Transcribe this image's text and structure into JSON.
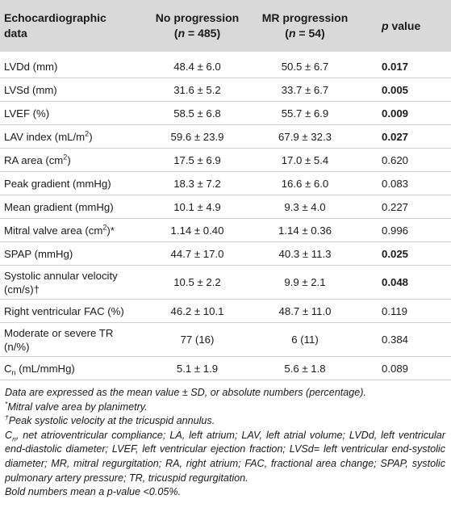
{
  "header": {
    "col1": "Echocardiographic data",
    "col2_line1": "No progression",
    "col2_line2": "(n = 485)",
    "col3_line1": "MR progression",
    "col3_line2": "(n = 54)",
    "col4": "p value"
  },
  "rows": [
    {
      "name": "LVDd (mm)",
      "a": "48.4 ± 6.0",
      "b": "50.5 ± 6.7",
      "p": "0.017",
      "bold": true
    },
    {
      "name": "LVSd (mm)",
      "a": "31.6 ± 5.2",
      "b": "33.7 ± 6.7",
      "p": "0.005",
      "bold": true
    },
    {
      "name": "LVEF (%)",
      "a": "58.5 ± 6.8",
      "b": "55.7 ± 6.9",
      "p": "0.009",
      "bold": true
    },
    {
      "name": "LAV index (mL/m",
      "sup": "2",
      "name_after": ")",
      "a": "59.6 ± 23.9",
      "b": "67.9 ± 32.3",
      "p": "0.027",
      "bold": true
    },
    {
      "name": "RA area (cm",
      "sup": "2",
      "name_after": ")",
      "a": "17.5 ± 6.9",
      "b": "17.0 ± 5.4",
      "p": "0.620",
      "bold": false
    },
    {
      "name": "Peak gradient (mmHg)",
      "a": "18.3 ± 7.2",
      "b": "16.6 ± 6.0",
      "p": "0.083",
      "bold": false
    },
    {
      "name": "Mean gradient (mmHg)",
      "a": "10.1 ± 4.9",
      "b": "9.3 ± 4.0",
      "p": "0.227",
      "bold": false
    },
    {
      "name": "Mitral valve area (cm",
      "sup": "2",
      "name_after": ")*",
      "a": "1.14 ± 0.40",
      "b": "1.14 ± 0.36",
      "p": "0.996",
      "bold": false
    },
    {
      "name": "SPAP (mmHg)",
      "a": "44.7 ± 17.0",
      "b": "40.3 ± 11.3",
      "p": "0.025",
      "bold": true
    },
    {
      "name": "Systolic annular velocity",
      "name2": "(cm/s)†",
      "a": "10.5 ± 2.2",
      "b": "9.9 ± 2.1",
      "p": "0.048",
      "bold": true
    },
    {
      "name": "Right ventricular FAC (%)",
      "a": "46.2 ± 10.1",
      "b": "48.7 ± 11.0",
      "p": "0.119",
      "bold": false
    },
    {
      "name": "Moderate or severe TR",
      "name2": "(n/%)",
      "a": "77 (16)",
      "b": "6 (11)",
      "p": "0.384",
      "bold": false
    },
    {
      "name": "C",
      "sub": "n",
      "name_after": " (mL/mmHg)",
      "a": "5.1 ± 1.9",
      "b": "5.6 ± 1.8",
      "p": "0.089",
      "bold": false
    }
  ],
  "notes": {
    "n1": "Data are expressed as the mean value ± SD, or absolute numbers (percentage).",
    "n2_mark": "*",
    "n2": "Mitral valve area by planimetry.",
    "n3_mark": "†",
    "n3": "Peak systolic velocity at the tricuspid annulus.",
    "n4_c": "C",
    "n4_sub": "n",
    "n4": ", net atrioventricular compliance; LA, left atrium; LAV, left atrial volume; LVDd, left ventricular end-diastolic diameter; LVEF, left ventricular ejection fraction; LVSd= left ventricular end-systolic diameter; MR, mitral regurgitation; RA, right atrium; FAC, fractional area change; SPAP, systolic pulmonary artery pressure; TR, tricuspid regurgitation.",
    "n5": "Bold numbers mean a p-value <0.05%."
  }
}
